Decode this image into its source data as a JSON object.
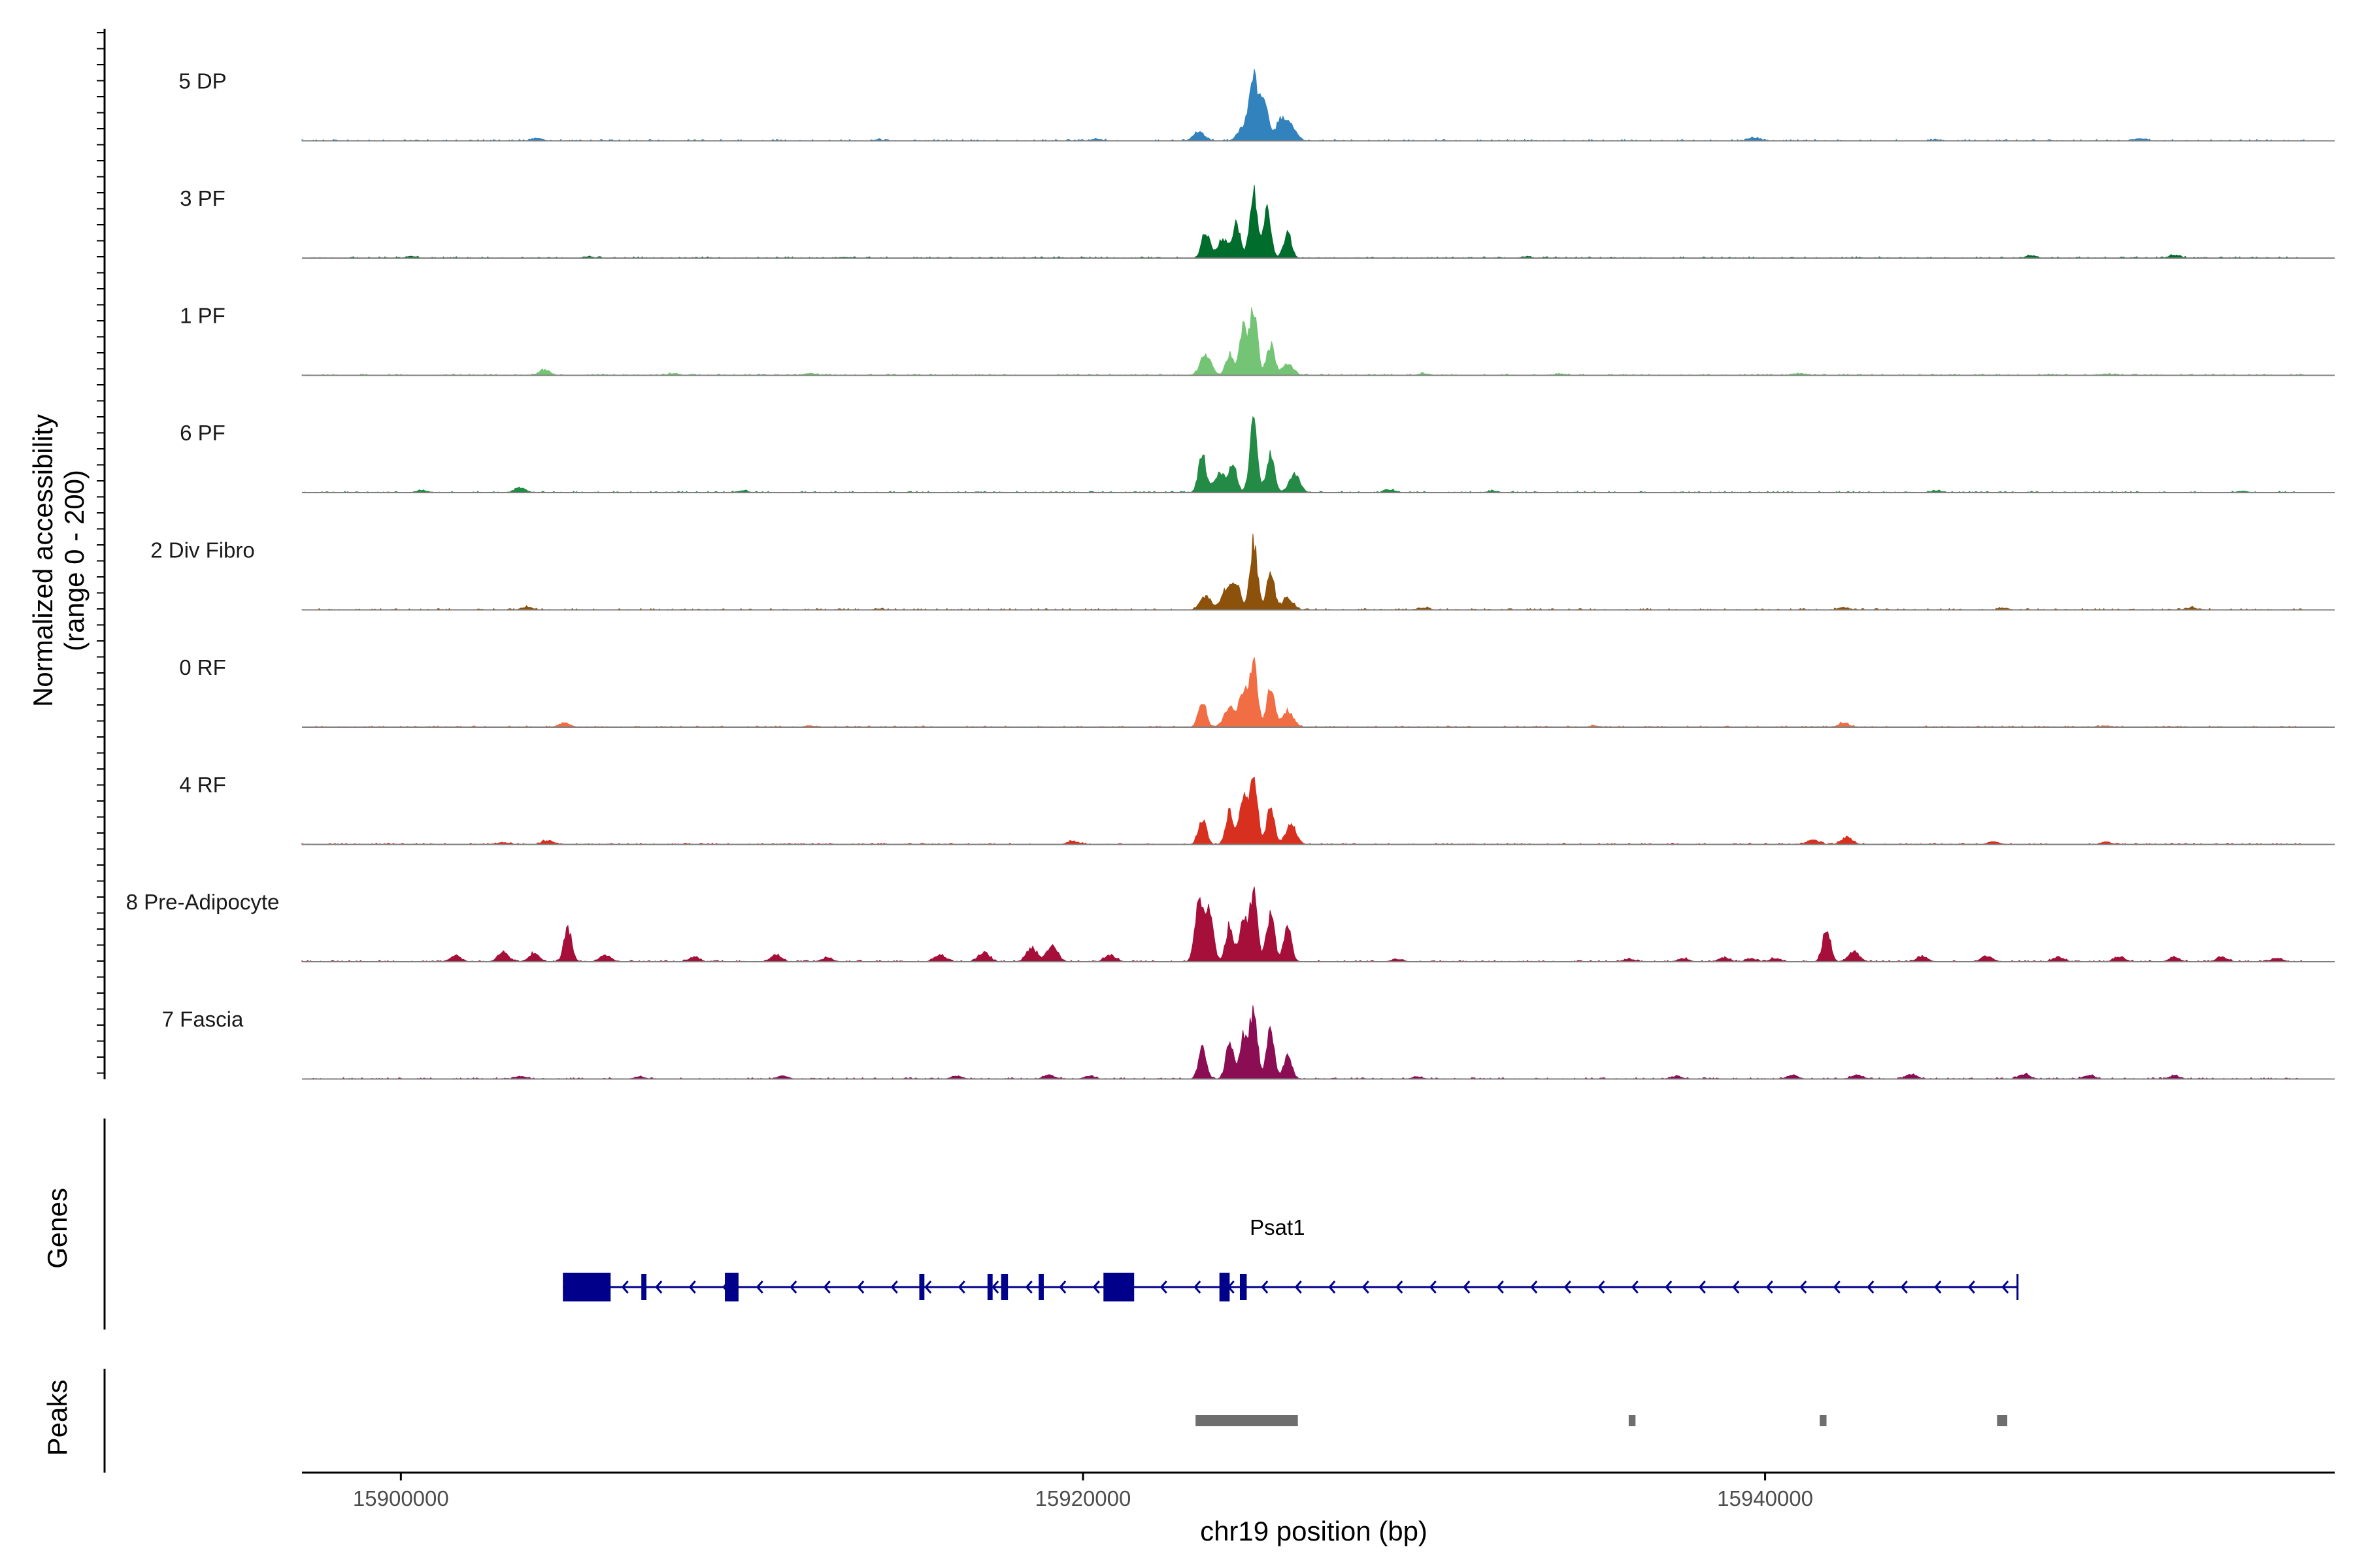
{
  "chart_data": {
    "type": "area",
    "title": "",
    "ylabel_line1": "Normalized accessibility",
    "ylabel_line2": "(range 0 - 200)",
    "ylim": [
      0,
      200
    ],
    "xlabel": "chr19 position (bp)",
    "xlim": [
      15897100,
      15956700
    ],
    "x_ticks": [
      {
        "value": 15900000,
        "label": "15900000"
      },
      {
        "value": 15920000,
        "label": "15920000"
      },
      {
        "value": 15940000,
        "label": "15940000"
      }
    ],
    "tracks": [
      {
        "name": "5 DP",
        "color": "#3182BD",
        "baseline": 1.0,
        "peaks": [
          [
            15924700,
            42
          ],
          [
            15925000,
            200
          ],
          [
            15925300,
            138
          ],
          [
            15925800,
            60
          ],
          [
            15923400,
            28
          ],
          [
            15926100,
            45
          ],
          [
            15904000,
            7
          ],
          [
            15939700,
            9
          ],
          [
            15951000,
            6
          ],
          [
            15920400,
            5
          ],
          [
            15914000,
            3
          ],
          [
            15945000,
            3
          ]
        ]
      },
      {
        "name": "3 PF",
        "color": "#006D2C",
        "baseline": 1.0,
        "peaks": [
          [
            15923600,
            80
          ],
          [
            15924500,
            100
          ],
          [
            15925000,
            200
          ],
          [
            15925400,
            140
          ],
          [
            15926000,
            75
          ],
          [
            15924100,
            55
          ],
          [
            15900300,
            5
          ],
          [
            15905500,
            4
          ],
          [
            15947800,
            7
          ],
          [
            15952000,
            9
          ],
          [
            15933000,
            4
          ],
          [
            15913000,
            3
          ]
        ]
      },
      {
        "name": "1 PF",
        "color": "#74C476",
        "baseline": 1.0,
        "peaks": [
          [
            15923600,
            60
          ],
          [
            15924300,
            65
          ],
          [
            15925000,
            200
          ],
          [
            15925500,
            90
          ],
          [
            15926000,
            35
          ],
          [
            15924700,
            140
          ],
          [
            15904200,
            17
          ],
          [
            15908000,
            5
          ],
          [
            15912000,
            6
          ],
          [
            15930000,
            5
          ],
          [
            15934000,
            4
          ],
          [
            15941000,
            5
          ],
          [
            15950000,
            4
          ]
        ]
      },
      {
        "name": "6 PF",
        "color": "#238B45",
        "baseline": 1.0,
        "peaks": [
          [
            15923500,
            110
          ],
          [
            15924400,
            82
          ],
          [
            15925000,
            200
          ],
          [
            15925500,
            120
          ],
          [
            15926200,
            55
          ],
          [
            15924000,
            60
          ],
          [
            15903500,
            15
          ],
          [
            15900600,
            6
          ],
          [
            15910000,
            5
          ],
          [
            15929000,
            8
          ],
          [
            15932000,
            4
          ],
          [
            15945000,
            5
          ],
          [
            15954000,
            4
          ]
        ]
      },
      {
        "name": "2 Div Fibro",
        "color": "#8C510A",
        "baseline": 1.0,
        "peaks": [
          [
            15923600,
            40
          ],
          [
            15924500,
            80
          ],
          [
            15925000,
            200
          ],
          [
            15925500,
            110
          ],
          [
            15926000,
            35
          ],
          [
            15924200,
            60
          ],
          [
            15903700,
            8
          ],
          [
            15930000,
            6
          ],
          [
            15942300,
            7
          ],
          [
            15947000,
            5
          ],
          [
            15952500,
            6
          ],
          [
            15914000,
            3
          ]
        ]
      },
      {
        "name": "0 RF",
        "color": "#F16D43",
        "baseline": 1.0,
        "peaks": [
          [
            15923500,
            80
          ],
          [
            15924300,
            60
          ],
          [
            15925000,
            200
          ],
          [
            15925500,
            120
          ],
          [
            15926000,
            50
          ],
          [
            15924700,
            110
          ],
          [
            15904800,
            14
          ],
          [
            15942300,
            12
          ],
          [
            15912000,
            4
          ],
          [
            15935000,
            4
          ],
          [
            15950000,
            4
          ]
        ]
      },
      {
        "name": "4 RF",
        "color": "#D7301F",
        "baseline": 1.0,
        "peaks": [
          [
            15923500,
            80
          ],
          [
            15924300,
            100
          ],
          [
            15925000,
            200
          ],
          [
            15925500,
            110
          ],
          [
            15926100,
            60
          ],
          [
            15924700,
            140
          ],
          [
            15904300,
            12
          ],
          [
            15919700,
            10
          ],
          [
            15941400,
            13
          ],
          [
            15942400,
            22
          ],
          [
            15946700,
            8
          ],
          [
            15903000,
            6
          ],
          [
            15950000,
            6
          ]
        ]
      },
      {
        "name": "8 Pre-Adipocyte",
        "color": "#A50F3A",
        "baseline": 1.0,
        "peaks": [
          [
            15923400,
            200
          ],
          [
            15923700,
            150
          ],
          [
            15924300,
            110
          ],
          [
            15925000,
            200
          ],
          [
            15925500,
            150
          ],
          [
            15926000,
            100
          ],
          [
            15924700,
            130
          ],
          [
            15904900,
            100
          ],
          [
            15901600,
            18
          ],
          [
            15903000,
            28
          ],
          [
            15903900,
            24
          ],
          [
            15906000,
            20
          ],
          [
            15908600,
            14
          ],
          [
            15911000,
            20
          ],
          [
            15912500,
            12
          ],
          [
            15915800,
            20
          ],
          [
            15917100,
            28
          ],
          [
            15918500,
            40
          ],
          [
            15919100,
            50
          ],
          [
            15920800,
            20
          ],
          [
            15941800,
            100
          ],
          [
            15942600,
            30
          ],
          [
            15944600,
            16
          ],
          [
            15946500,
            18
          ],
          [
            15948600,
            14
          ],
          [
            15950400,
            14
          ],
          [
            15952000,
            12
          ],
          [
            15953400,
            13
          ],
          [
            15955000,
            10
          ],
          [
            15936000,
            8
          ],
          [
            15937600,
            10
          ],
          [
            15938800,
            12
          ],
          [
            15940300,
            10
          ],
          [
            15939600,
            8
          ],
          [
            15929200,
            8
          ]
        ]
      },
      {
        "name": "7 Fascia",
        "color": "#8B0E54",
        "baseline": 1.0,
        "peaks": [
          [
            15923500,
            90
          ],
          [
            15924300,
            105
          ],
          [
            15925000,
            200
          ],
          [
            15925500,
            150
          ],
          [
            15926000,
            70
          ],
          [
            15924700,
            125
          ],
          [
            15903500,
            8
          ],
          [
            15907000,
            6
          ],
          [
            15911200,
            9
          ],
          [
            15916300,
            9
          ],
          [
            15919000,
            12
          ],
          [
            15920200,
            8
          ],
          [
            15929800,
            6
          ],
          [
            15940800,
            11
          ],
          [
            15942700,
            12
          ],
          [
            15944300,
            14
          ],
          [
            15947600,
            14
          ],
          [
            15949500,
            11
          ],
          [
            15952000,
            9
          ],
          [
            15937400,
            7
          ]
        ]
      }
    ],
    "genes": [
      {
        "name": "Psat1",
        "strand": "-",
        "start": 15904750,
        "end": 15947400,
        "exons": [
          [
            15904750,
            15906150
          ],
          [
            15907050,
            15907200
          ],
          [
            15909500,
            15909900
          ],
          [
            15915200,
            15915350
          ],
          [
            15917200,
            15917350
          ],
          [
            15917600,
            15917800
          ],
          [
            15918700,
            15918850
          ],
          [
            15920600,
            15921500
          ],
          [
            15924000,
            15924300
          ],
          [
            15924600,
            15924800
          ]
        ]
      }
    ],
    "peaks": [
      [
        15923300,
        15926300
      ],
      [
        15936000,
        15936200
      ],
      [
        15941600,
        15941800
      ],
      [
        15946800,
        15947100
      ]
    ]
  },
  "labels": {
    "genes_axis": "Genes",
    "peaks_axis": "Peaks"
  },
  "colors": {
    "gene": "#00008B",
    "peak": "#6E6E6E",
    "baseline": "#7F7F7F",
    "axis": "#000000"
  }
}
